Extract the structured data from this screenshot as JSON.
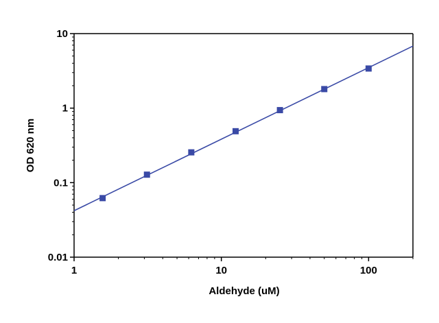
{
  "chart_data": {
    "type": "scatter",
    "title": "",
    "xlabel": "Aldehyde (uM)",
    "ylabel": "OD 620 nm",
    "x_scale": "log",
    "y_scale": "log",
    "xlim": [
      1,
      200
    ],
    "ylim": [
      0.01,
      10
    ],
    "grid": false,
    "x_ticks": [
      "1",
      "10",
      "100"
    ],
    "y_ticks": [
      "0.01",
      "0.1",
      "1",
      "10"
    ],
    "series": [
      {
        "marker": "square",
        "color": "#3a4aa6",
        "points": [
          {
            "x": 1.5625,
            "y": 0.062
          },
          {
            "x": 3.125,
            "y": 0.128
          },
          {
            "x": 6.25,
            "y": 0.255
          },
          {
            "x": 12.5,
            "y": 0.49
          },
          {
            "x": 25,
            "y": 0.94
          },
          {
            "x": 50,
            "y": 1.8
          },
          {
            "x": 100,
            "y": 3.4
          }
        ]
      }
    ],
    "fit_line": {
      "color": "#3a4aa6",
      "x": [
        1,
        200
      ],
      "y": [
        0.042,
        6.8
      ]
    }
  }
}
